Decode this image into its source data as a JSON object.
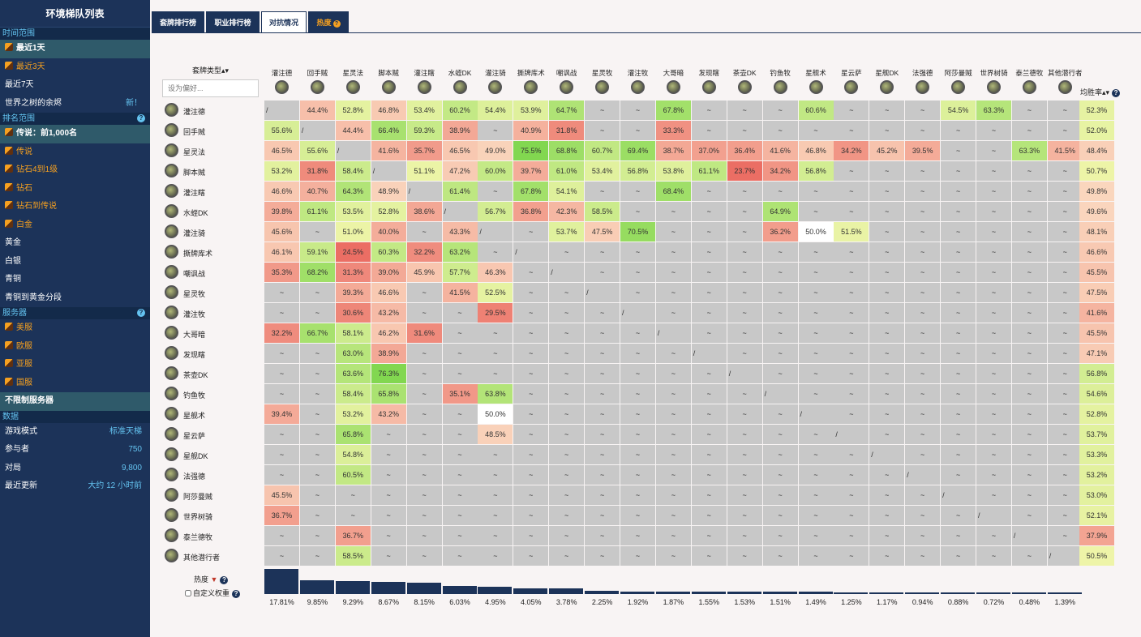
{
  "sidebar": {
    "title": "环境梯队列表",
    "sections": [
      {
        "label": "时间范围",
        "help": false,
        "items": [
          {
            "label": "最近1天",
            "selected": true,
            "icon": true,
            "orange": false
          },
          {
            "label": "最近3天",
            "selected": false,
            "icon": true,
            "orange": true
          },
          {
            "label": "最近7天",
            "selected": false,
            "icon": false,
            "orange": false
          },
          {
            "label": "世界之树的余烬",
            "selected": false,
            "icon": false,
            "orange": false,
            "right": "新！"
          }
        ]
      },
      {
        "label": "排名范围",
        "help": true,
        "items": [
          {
            "label": "传说：前1,000名",
            "selected": true,
            "icon": true,
            "orange": false
          },
          {
            "label": "传说",
            "selected": false,
            "icon": true,
            "orange": true
          },
          {
            "label": "钻石4到1级",
            "selected": false,
            "icon": true,
            "orange": true
          },
          {
            "label": "钻石",
            "selected": false,
            "icon": true,
            "orange": true
          },
          {
            "label": "钻石到传说",
            "selected": false,
            "icon": true,
            "orange": true
          },
          {
            "label": "白金",
            "selected": false,
            "icon": true,
            "orange": true
          },
          {
            "label": "黄金",
            "selected": false,
            "icon": false,
            "orange": false
          },
          {
            "label": "白银",
            "selected": false,
            "icon": false,
            "orange": false
          },
          {
            "label": "青铜",
            "selected": false,
            "icon": false,
            "orange": false
          },
          {
            "label": "青铜到黄金分段",
            "selected": false,
            "icon": false,
            "orange": false
          }
        ]
      },
      {
        "label": "服务器",
        "help": true,
        "items": [
          {
            "label": "美服",
            "selected": false,
            "icon": true,
            "orange": true
          },
          {
            "label": "欧服",
            "selected": false,
            "icon": true,
            "orange": true
          },
          {
            "label": "亚服",
            "selected": false,
            "icon": true,
            "orange": true
          },
          {
            "label": "国服",
            "selected": false,
            "icon": true,
            "orange": true
          },
          {
            "label": "不限制服务器",
            "selected": true,
            "icon": false,
            "orange": false
          }
        ]
      },
      {
        "label": "数据",
        "help": false,
        "items": [
          {
            "label": "游戏模式",
            "selected": false,
            "icon": false,
            "orange": false,
            "right": "标准天梯"
          },
          {
            "label": "参与者",
            "selected": false,
            "icon": false,
            "orange": false,
            "right": "750"
          },
          {
            "label": "对局",
            "selected": false,
            "icon": false,
            "orange": false,
            "right": "9,800"
          },
          {
            "label": "最近更新",
            "selected": false,
            "icon": false,
            "orange": false,
            "right": "大约 12 小时前"
          }
        ]
      }
    ]
  },
  "tabs": [
    {
      "label": "套牌排行榜",
      "active": false
    },
    {
      "label": "职业排行榜",
      "active": false
    },
    {
      "label": "对抗情况",
      "active": true
    },
    {
      "label": "热度",
      "active": false,
      "hot": true
    }
  ],
  "matrix": {
    "sort_label": "套牌类型",
    "filter_placeholder": "设为偏好...",
    "winrate_label": "均胜率",
    "heat_label": "热度",
    "custom_weight_label": "自定义权重",
    "decks": [
      "灌注德",
      "回手贼",
      "星灵法",
      "脚本贼",
      "灌注瞎",
      "水蛭DK",
      "灌注骑",
      "撕牌库术",
      "嘲讽战",
      "星灵牧",
      "灌注牧",
      "大哥暗",
      "发现瞎",
      "茶壶DK",
      "钓鱼牧",
      "星舰术",
      "星云萨",
      "星舰DK",
      "法强德",
      "阿莎曼贼",
      "世界树骑",
      "泰兰德牧",
      "其他潜行者"
    ],
    "rows": [
      [
        "/",
        "44.4%",
        "52.8%",
        "46.8%",
        "53.4%",
        "60.2%",
        "54.4%",
        "53.9%",
        "64.7%",
        "~",
        "~",
        "67.8%",
        "~",
        "~",
        "~",
        "60.6%",
        "~",
        "~",
        "~",
        "54.5%",
        "63.3%",
        "~",
        "~"
      ],
      [
        "55.6%",
        "/",
        "44.4%",
        "66.4%",
        "59.3%",
        "38.9%",
        "~",
        "40.9%",
        "31.8%",
        "~",
        "~",
        "33.3%",
        "~",
        "~",
        "~",
        "~",
        "~",
        "~",
        "~",
        "~",
        "~",
        "~",
        "~"
      ],
      [
        "46.5%",
        "55.6%",
        "/",
        "41.6%",
        "35.7%",
        "46.5%",
        "49.0%",
        "75.5%",
        "68.8%",
        "60.7%",
        "69.4%",
        "38.7%",
        "37.0%",
        "36.4%",
        "41.6%",
        "46.8%",
        "34.2%",
        "45.2%",
        "39.5%",
        "~",
        "~",
        "63.3%",
        "41.5%"
      ],
      [
        "53.2%",
        "31.8%",
        "58.4%",
        "/",
        "51.1%",
        "47.2%",
        "60.0%",
        "39.7%",
        "61.0%",
        "53.4%",
        "56.8%",
        "53.8%",
        "61.1%",
        "23.7%",
        "34.2%",
        "56.8%",
        "~",
        "~",
        "~",
        "~",
        "~",
        "~",
        "~"
      ],
      [
        "46.6%",
        "40.7%",
        "64.3%",
        "48.9%",
        "/",
        "61.4%",
        "~",
        "67.8%",
        "54.1%",
        "~",
        "~",
        "68.4%",
        "~",
        "~",
        "~",
        "~",
        "~",
        "~",
        "~",
        "~",
        "~",
        "~",
        "~"
      ],
      [
        "39.8%",
        "61.1%",
        "53.5%",
        "52.8%",
        "38.6%",
        "/",
        "56.7%",
        "36.8%",
        "42.3%",
        "58.5%",
        "~",
        "~",
        "~",
        "~",
        "64.9%",
        "~",
        "~",
        "~",
        "~",
        "~",
        "~",
        "~",
        "~"
      ],
      [
        "45.6%",
        "~",
        "51.0%",
        "40.0%",
        "~",
        "43.3%",
        "/",
        "~",
        "53.7%",
        "47.5%",
        "70.5%",
        "~",
        "~",
        "~",
        "36.2%",
        "50.0%",
        "51.5%",
        "~",
        "~",
        "~",
        "~",
        "~",
        "~"
      ],
      [
        "46.1%",
        "59.1%",
        "24.5%",
        "60.3%",
        "32.2%",
        "63.2%",
        "~",
        "/",
        "~",
        "~",
        "~",
        "~",
        "~",
        "~",
        "~",
        "~",
        "~",
        "~",
        "~",
        "~",
        "~",
        "~",
        "~"
      ],
      [
        "35.3%",
        "68.2%",
        "31.3%",
        "39.0%",
        "45.9%",
        "57.7%",
        "46.3%",
        "~",
        "/",
        "~",
        "~",
        "~",
        "~",
        "~",
        "~",
        "~",
        "~",
        "~",
        "~",
        "~",
        "~",
        "~",
        "~"
      ],
      [
        "~",
        "~",
        "39.3%",
        "46.6%",
        "~",
        "41.5%",
        "52.5%",
        "~",
        "~",
        "/",
        "~",
        "~",
        "~",
        "~",
        "~",
        "~",
        "~",
        "~",
        "~",
        "~",
        "~",
        "~",
        "~"
      ],
      [
        "~",
        "~",
        "30.6%",
        "43.2%",
        "~",
        "~",
        "29.5%",
        "~",
        "~",
        "~",
        "/",
        "~",
        "~",
        "~",
        "~",
        "~",
        "~",
        "~",
        "~",
        "~",
        "~",
        "~",
        "~"
      ],
      [
        "32.2%",
        "66.7%",
        "58.1%",
        "46.2%",
        "31.6%",
        "~",
        "~",
        "~",
        "~",
        "~",
        "~",
        "/",
        "~",
        "~",
        "~",
        "~",
        "~",
        "~",
        "~",
        "~",
        "~",
        "~",
        "~"
      ],
      [
        "~",
        "~",
        "63.0%",
        "38.9%",
        "~",
        "~",
        "~",
        "~",
        "~",
        "~",
        "~",
        "~",
        "/",
        "~",
        "~",
        "~",
        "~",
        "~",
        "~",
        "~",
        "~",
        "~",
        "~"
      ],
      [
        "~",
        "~",
        "63.6%",
        "76.3%",
        "~",
        "~",
        "~",
        "~",
        "~",
        "~",
        "~",
        "~",
        "~",
        "/",
        "~",
        "~",
        "~",
        "~",
        "~",
        "~",
        "~",
        "~",
        "~"
      ],
      [
        "~",
        "~",
        "58.4%",
        "65.8%",
        "~",
        "35.1%",
        "63.8%",
        "~",
        "~",
        "~",
        "~",
        "~",
        "~",
        "~",
        "/",
        "~",
        "~",
        "~",
        "~",
        "~",
        "~",
        "~",
        "~"
      ],
      [
        "39.4%",
        "~",
        "53.2%",
        "43.2%",
        "~",
        "~",
        "50.0%",
        "~",
        "~",
        "~",
        "~",
        "~",
        "~",
        "~",
        "~",
        "/",
        "~",
        "~",
        "~",
        "~",
        "~",
        "~",
        "~"
      ],
      [
        "~",
        "~",
        "65.8%",
        "~",
        "~",
        "~",
        "48.5%",
        "~",
        "~",
        "~",
        "~",
        "~",
        "~",
        "~",
        "~",
        "~",
        "/",
        "~",
        "~",
        "~",
        "~",
        "~",
        "~"
      ],
      [
        "~",
        "~",
        "54.8%",
        "~",
        "~",
        "~",
        "~",
        "~",
        "~",
        "~",
        "~",
        "~",
        "~",
        "~",
        "~",
        "~",
        "~",
        "/",
        "~",
        "~",
        "~",
        "~",
        "~"
      ],
      [
        "~",
        "~",
        "60.5%",
        "~",
        "~",
        "~",
        "~",
        "~",
        "~",
        "~",
        "~",
        "~",
        "~",
        "~",
        "~",
        "~",
        "~",
        "~",
        "/",
        "~",
        "~",
        "~",
        "~"
      ],
      [
        "45.5%",
        "~",
        "~",
        "~",
        "~",
        "~",
        "~",
        "~",
        "~",
        "~",
        "~",
        "~",
        "~",
        "~",
        "~",
        "~",
        "~",
        "~",
        "~",
        "/",
        "~",
        "~",
        "~"
      ],
      [
        "36.7%",
        "~",
        "~",
        "~",
        "~",
        "~",
        "~",
        "~",
        "~",
        "~",
        "~",
        "~",
        "~",
        "~",
        "~",
        "~",
        "~",
        "~",
        "~",
        "~",
        "/",
        "~",
        "~"
      ],
      [
        "~",
        "~",
        "36.7%",
        "~",
        "~",
        "~",
        "~",
        "~",
        "~",
        "~",
        "~",
        "~",
        "~",
        "~",
        "~",
        "~",
        "~",
        "~",
        "~",
        "~",
        "~",
        "/",
        "~"
      ],
      [
        "~",
        "~",
        "58.5%",
        "~",
        "~",
        "~",
        "~",
        "~",
        "~",
        "~",
        "~",
        "~",
        "~",
        "~",
        "~",
        "~",
        "~",
        "~",
        "~",
        "~",
        "~",
        "~",
        "/"
      ]
    ],
    "avg_winrate": [
      "52.3%",
      "52.0%",
      "48.4%",
      "50.7%",
      "49.8%",
      "49.6%",
      "48.1%",
      "46.6%",
      "45.5%",
      "47.5%",
      "41.6%",
      "45.5%",
      "47.1%",
      "56.8%",
      "54.6%",
      "52.8%",
      "53.7%",
      "53.3%",
      "53.2%",
      "53.0%",
      "52.1%",
      "37.9%",
      "50.5%"
    ],
    "popularity": [
      "17.81%",
      "9.85%",
      "9.29%",
      "8.67%",
      "8.15%",
      "6.03%",
      "4.95%",
      "4.05%",
      "3.78%",
      "2.25%",
      "1.92%",
      "1.87%",
      "1.55%",
      "1.53%",
      "1.51%",
      "1.49%",
      "1.25%",
      "1.17%",
      "0.94%",
      "0.88%",
      "0.72%",
      "0.48%",
      "1.39%"
    ],
    "popularity_values": [
      17.81,
      9.85,
      9.29,
      8.67,
      8.15,
      6.03,
      4.95,
      4.05,
      3.78,
      2.25,
      1.92,
      1.87,
      1.55,
      1.53,
      1.51,
      1.49,
      1.25,
      1.17,
      0.94,
      0.88,
      0.72,
      0.48,
      1.39
    ]
  }
}
